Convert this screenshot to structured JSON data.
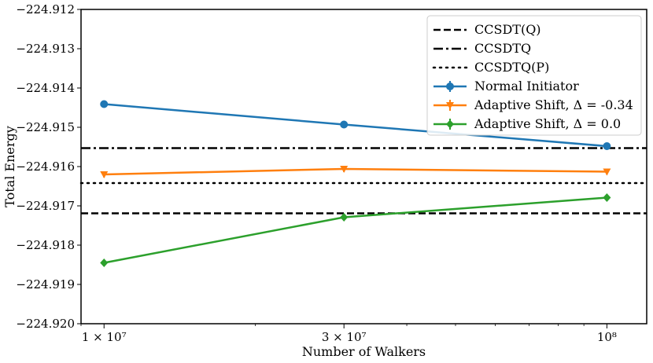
{
  "chart_data": {
    "type": "line",
    "title": "",
    "xlabel": "Number of Walkers",
    "ylabel": "Total Energy",
    "xscale": "log",
    "xlim": [
      9000000,
      120000000
    ],
    "ylim": [
      -224.92,
      -224.912
    ],
    "grid": false,
    "legend_position": "top-right",
    "x_ticks": [
      {
        "value": 10000000,
        "label": "1 × 10⁷"
      },
      {
        "value": 30000000,
        "label": "3 × 10⁷"
      },
      {
        "value": 100000000,
        "label": "10⁸"
      }
    ],
    "y_ticks": [
      {
        "value": -224.912,
        "label": "−224.912"
      },
      {
        "value": -224.913,
        "label": "−224.913"
      },
      {
        "value": -224.914,
        "label": "−224.914"
      },
      {
        "value": -224.915,
        "label": "−224.915"
      },
      {
        "value": -224.916,
        "label": "−224.916"
      },
      {
        "value": -224.917,
        "label": "−224.917"
      },
      {
        "value": -224.918,
        "label": "−224.918"
      },
      {
        "value": -224.919,
        "label": "−224.919"
      },
      {
        "value": -224.92,
        "label": "−224.920"
      }
    ],
    "reference_lines": [
      {
        "name": "CCSDT(Q)",
        "value": -224.91719,
        "style": "dashed",
        "color": "#000000"
      },
      {
        "name": "CCSDTQ",
        "value": -224.91553,
        "style": "dashdot",
        "color": "#000000"
      },
      {
        "name": "CCSDTQ(P)",
        "value": -224.91642,
        "style": "dotted",
        "color": "#000000"
      }
    ],
    "series": [
      {
        "name": "Normal Initiator",
        "color": "#1f77b4",
        "marker": "circle",
        "x": [
          10000000,
          30000000,
          100000000
        ],
        "y": [
          -224.91441,
          -224.91493,
          -224.91548
        ]
      },
      {
        "name": "Adaptive Shift, Δ = -0.34",
        "color": "#ff7f0e",
        "marker": "triangle-down",
        "x": [
          10000000,
          30000000,
          100000000
        ],
        "y": [
          -224.9162,
          -224.91606,
          -224.91613
        ]
      },
      {
        "name": "Adaptive Shift, Δ =  0.0",
        "color": "#2ca02c",
        "marker": "diamond",
        "x": [
          10000000,
          30000000,
          100000000
        ],
        "y": [
          -224.91845,
          -224.91729,
          -224.91679
        ]
      }
    ]
  }
}
